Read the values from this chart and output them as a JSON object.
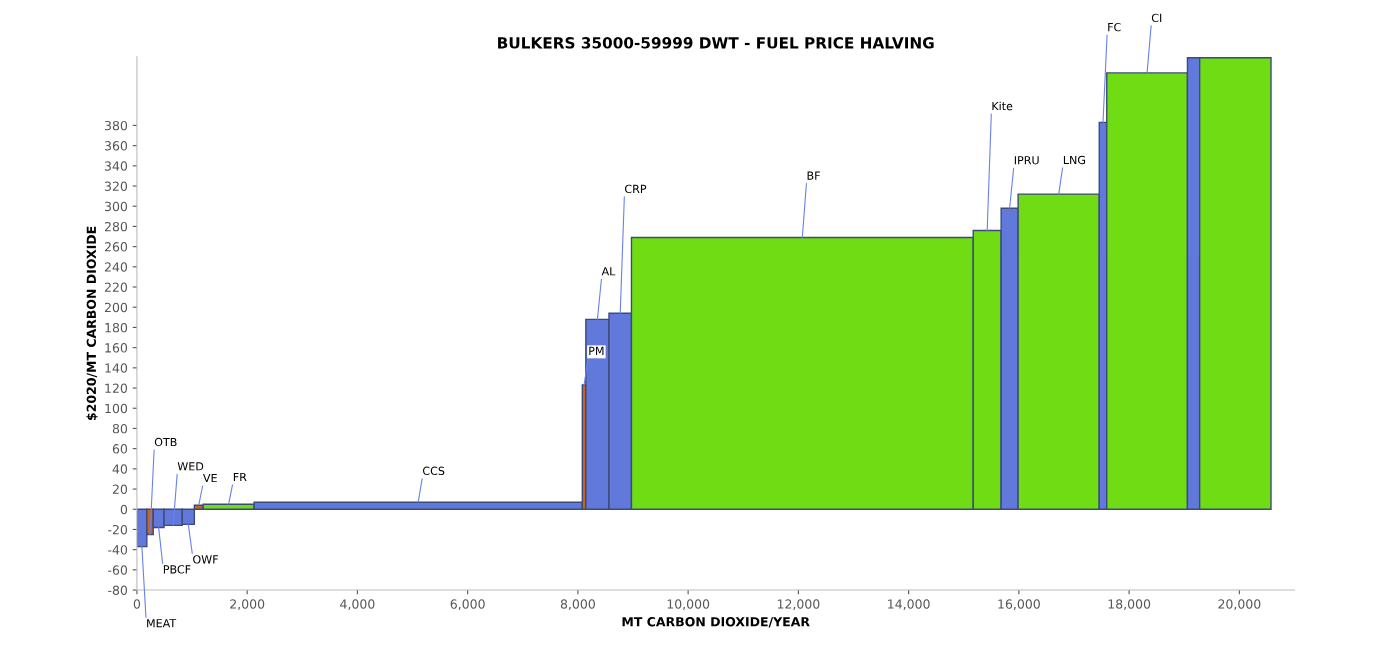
{
  "chart_data": {
    "type": "bar",
    "title": "BULKERS 35000-59999 DWT - FUEL PRICE HALVING",
    "xlabel": "MT CARBON DIOXIDE/YEAR",
    "ylabel": "$2020/MT CARBON DIOXIDE",
    "x": [
      90,
      238,
      394,
      657,
      932,
      1122,
      1664,
      5103,
      8112,
      8354,
      8768,
      12072,
      15425,
      15832,
      16722,
      17526,
      18326,
      19169,
      19927
    ],
    "values": [
      -37,
      -25,
      -18,
      -16,
      -15,
      4,
      5,
      7,
      123,
      188,
      194,
      269,
      276,
      298,
      312,
      383,
      432,
      447,
      447
    ],
    "colors": [
      "#6079db",
      "#c8641e",
      "#6079db",
      "#6079db",
      "#6079db",
      "#c8641e",
      "#6fdc14",
      "#6079db",
      "#c8641e",
      "#6079db",
      "#6079db",
      "#6fdc14",
      "#6fdc14",
      "#6079db",
      "#6fdc14",
      "#6079db",
      "#6fdc14",
      "#6079db",
      "#6fdc14"
    ],
    "annotations": [
      {
        "text": "MEAT",
        "x": 90,
        "y": -37
      },
      {
        "text": "OTB",
        "x": 238,
        "y": -25
      },
      {
        "text": "PBCF",
        "x": 394,
        "y": -18
      },
      {
        "text": "WED",
        "x": 657,
        "y": -16
      },
      {
        "text": "OWF",
        "x": 932,
        "y": -15
      },
      {
        "text": "VE",
        "x": 1122,
        "y": 4
      },
      {
        "text": "FR",
        "x": 1664,
        "y": 5
      },
      {
        "text": "CCS",
        "x": 5103,
        "y": 7
      },
      {
        "text": "PM",
        "x": 8112,
        "y": 123
      },
      {
        "text": "AL",
        "x": 8354,
        "y": 188
      },
      {
        "text": "CRP",
        "x": 8768,
        "y": 194
      },
      {
        "text": "BF",
        "x": 12072,
        "y": 269
      },
      {
        "text": "Kite",
        "x": 15425,
        "y": 276
      },
      {
        "text": "IPRU",
        "x": 15832,
        "y": 298
      },
      {
        "text": "LNG",
        "x": 16722,
        "y": 312
      },
      {
        "text": "FC",
        "x": 17526,
        "y": 383
      },
      {
        "text": "CI",
        "x": 18326,
        "y": 432
      }
    ],
    "xlim": [
      0,
      21000
    ],
    "ylim": [
      -80,
      448
    ],
    "xticks": [
      0,
      {
        "value": 2000,
        "label": "2,000"
      },
      {
        "value": 4000,
        "label": "4,000"
      },
      {
        "value": 6000,
        "label": "6,000"
      },
      {
        "value": 8000,
        "label": "8,000"
      },
      {
        "value": 10000,
        "label": "10,000"
      },
      {
        "value": 12000,
        "label": "12,000"
      },
      {
        "value": 14000,
        "label": "14,000"
      },
      {
        "value": 16000,
        "label": "16,000"
      },
      {
        "value": 18000,
        "label": "18,000"
      },
      {
        "value": 20000,
        "label": "20,000"
      }
    ],
    "yticks": [
      -80,
      -60,
      -40,
      -20,
      0,
      20,
      40,
      60,
      80,
      100,
      120,
      140,
      160,
      180,
      200,
      220,
      240,
      260,
      280,
      300,
      320,
      340,
      360,
      380
    ],
    "grid": false,
    "legend": false
  }
}
